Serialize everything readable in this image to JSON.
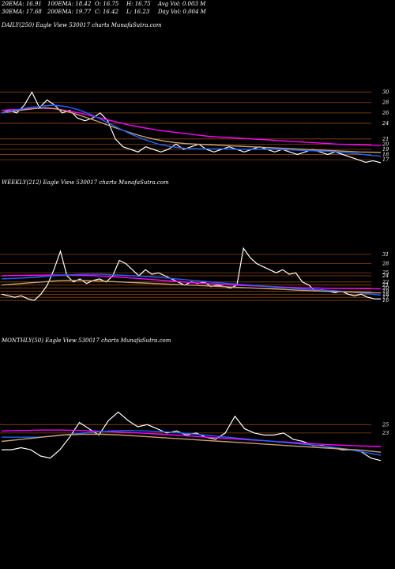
{
  "header": {
    "row1": [
      "20EMA: 16.91",
      "100EMA: 18.42",
      "O: 16.75",
      "H: 16.75",
      "Avg Vol: 0.003 M"
    ],
    "row2": [
      "30EMA: 17.68",
      "200EMA: 19.77",
      "C: 16.42",
      "L: 16.23",
      "Day Vol: 0.004 M"
    ]
  },
  "colors": {
    "background": "#000000",
    "price": "#ffffff",
    "grid": "#8b4513",
    "ema_pink": "#ff00ff",
    "ema_blue": "#1e64ff",
    "ema_tan": "#c8a070"
  },
  "chart_data": [
    {
      "type": "line",
      "title": "DAILY(250) Eagle   View  530017 charts MunafaSutra.com",
      "ylim": [
        15.5,
        31
      ],
      "yticks": [
        30,
        28,
        26,
        24,
        21,
        20,
        19,
        18,
        17
      ],
      "grid": true,
      "series": [
        {
          "color": "#ffffff",
          "values": [
            26,
            26.5,
            26,
            27.5,
            30,
            27,
            28.5,
            27.5,
            26,
            26.5,
            25,
            24.5,
            25,
            26,
            24.5,
            21,
            19.5,
            19,
            18.5,
            19.5,
            19,
            18.5,
            19,
            20,
            19,
            19.5,
            20,
            19,
            18.5,
            19,
            19.5,
            19,
            18.5,
            19,
            19.5,
            19,
            18.5,
            19,
            18.5,
            18,
            18.5,
            19,
            18.5,
            18,
            18.5,
            18,
            17.5,
            17,
            16.5,
            16.8,
            16.42
          ]
        },
        {
          "color": "#ff00ff",
          "values": [
            26.5,
            26.6,
            26.7,
            26.8,
            26.9,
            26.9,
            26.8,
            26.6,
            26.3,
            26,
            25.6,
            25.2,
            24.8,
            24.4,
            24,
            23.6,
            23.3,
            23,
            22.7,
            22.5,
            22.3,
            22.1,
            21.9,
            21.7,
            21.5,
            21.4,
            21.3,
            21.2,
            21.1,
            21,
            20.9,
            20.8,
            20.7,
            20.6,
            20.5,
            20.4,
            20.3,
            20.2,
            20.1,
            20,
            19.95,
            19.9,
            19.85,
            19.8,
            19.77
          ]
        },
        {
          "color": "#c8a070",
          "values": [
            26,
            26.3,
            26.6,
            26.8,
            27,
            26.8,
            26.3,
            25.7,
            25,
            24.3,
            23.5,
            22.8,
            22.1,
            21.5,
            21,
            20.6,
            20.3,
            20.1,
            20,
            19.9,
            19.8,
            19.7,
            19.6,
            19.5,
            19.4,
            19.3,
            19.2,
            19.1,
            19,
            18.9,
            18.8,
            18.7,
            18.6,
            18.5,
            18.45,
            18.42
          ]
        },
        {
          "color": "#1e64ff",
          "values": [
            26,
            26.5,
            27,
            27.3,
            27.5,
            27.2,
            26.5,
            25.5,
            24.3,
            23,
            21.8,
            20.8,
            20,
            19.5,
            19.2,
            19.1,
            19.1,
            19.1,
            19,
            19,
            19,
            19,
            18.9,
            18.8,
            18.7,
            18.6,
            18.4,
            18.2,
            17.9,
            17.68
          ]
        }
      ]
    },
    {
      "type": "line",
      "title": "WEEKLY(212) Eagle   View  530017 charts MunafaSutra.com",
      "ylim": [
        15.5,
        32
      ],
      "yticks": [
        31,
        28,
        25,
        24,
        22,
        21,
        20,
        19,
        18,
        17,
        16
      ],
      "grid": true,
      "series": [
        {
          "color": "#ffffff",
          "values": [
            18,
            17.5,
            17,
            17.5,
            16.5,
            16,
            18,
            21,
            26,
            32,
            24,
            22,
            23,
            21.5,
            22.5,
            23,
            22,
            24,
            29,
            28,
            26,
            24,
            26,
            24.5,
            25,
            24,
            23,
            22,
            21,
            22,
            21.5,
            22,
            20.5,
            21,
            20.5,
            20,
            21,
            33,
            30,
            28,
            27,
            26,
            25,
            26,
            24.5,
            25,
            22,
            21,
            19,
            19.5,
            19,
            18.5,
            19,
            18,
            17.5,
            18,
            17,
            16.5,
            16.42
          ]
        },
        {
          "color": "#ff00ff",
          "values": [
            24,
            24.1,
            24.2,
            24.3,
            24.3,
            24.2,
            24,
            23.7,
            23.4,
            23,
            22.6,
            22.2,
            21.8,
            21.5,
            21.2,
            20.9,
            20.7,
            20.5,
            20.3,
            20.1,
            20,
            19.9,
            19.85,
            19.8,
            19.77
          ]
        },
        {
          "color": "#1e64ff",
          "values": [
            23,
            23.2,
            23.5,
            24,
            24.3,
            24.5,
            24.5,
            24.3,
            24,
            23.7,
            23.3,
            22.8,
            22.3,
            21.8,
            21.4,
            21,
            20.6,
            20.2,
            19.8,
            19.5,
            19.2,
            18.8,
            18.3,
            17.68
          ]
        },
        {
          "color": "#c8a070",
          "values": [
            21,
            21.5,
            22,
            22.5,
            22.5,
            22.3,
            22,
            21.7,
            21.4,
            21.1,
            20.8,
            20.5,
            20.2,
            19.9,
            19.6,
            19.3,
            19,
            18.8,
            18.6,
            18.42
          ]
        }
      ]
    },
    {
      "type": "line",
      "title": "MONTHLY(50) Eagle   View  530017 charts MunafaSutra.com",
      "ylim": [
        16,
        26
      ],
      "yticks": [
        25,
        23
      ],
      "grid": true,
      "series": [
        {
          "color": "#ffffff",
          "values": [
            19,
            19,
            19.5,
            19,
            17.5,
            17,
            19,
            22,
            25.5,
            24,
            22.5,
            26,
            28,
            26,
            24.5,
            25,
            24,
            23,
            23.5,
            22.5,
            23,
            22,
            21.5,
            23,
            27,
            24,
            23,
            22.5,
            22.5,
            23,
            21.5,
            21,
            20,
            20,
            19.5,
            19,
            19,
            18.5,
            17,
            16.42
          ]
        },
        {
          "color": "#ff00ff",
          "values": [
            23.5,
            23.6,
            23.7,
            23.7,
            23.6,
            23.4,
            23.2,
            23,
            22.7,
            22.4,
            22.1,
            21.8,
            21.5,
            21.2,
            20.9,
            20.6,
            20.3,
            20.1,
            19.9,
            19.77
          ]
        },
        {
          "color": "#1e64ff",
          "values": [
            22,
            22,
            22,
            22.3,
            22.8,
            23.2,
            23.5,
            23.6,
            23.5,
            23.3,
            23,
            22.6,
            22.2,
            21.8,
            21.4,
            21,
            20.6,
            20.2,
            19.8,
            19.2,
            18.5,
            17.68
          ]
        },
        {
          "color": "#c8a070",
          "values": [
            21,
            21.5,
            22,
            22.5,
            22.7,
            22.7,
            22.5,
            22.2,
            21.9,
            21.6,
            21.3,
            21,
            20.7,
            20.4,
            20.1,
            19.8,
            19.5,
            19.2,
            18.9,
            18.42
          ]
        }
      ]
    }
  ]
}
